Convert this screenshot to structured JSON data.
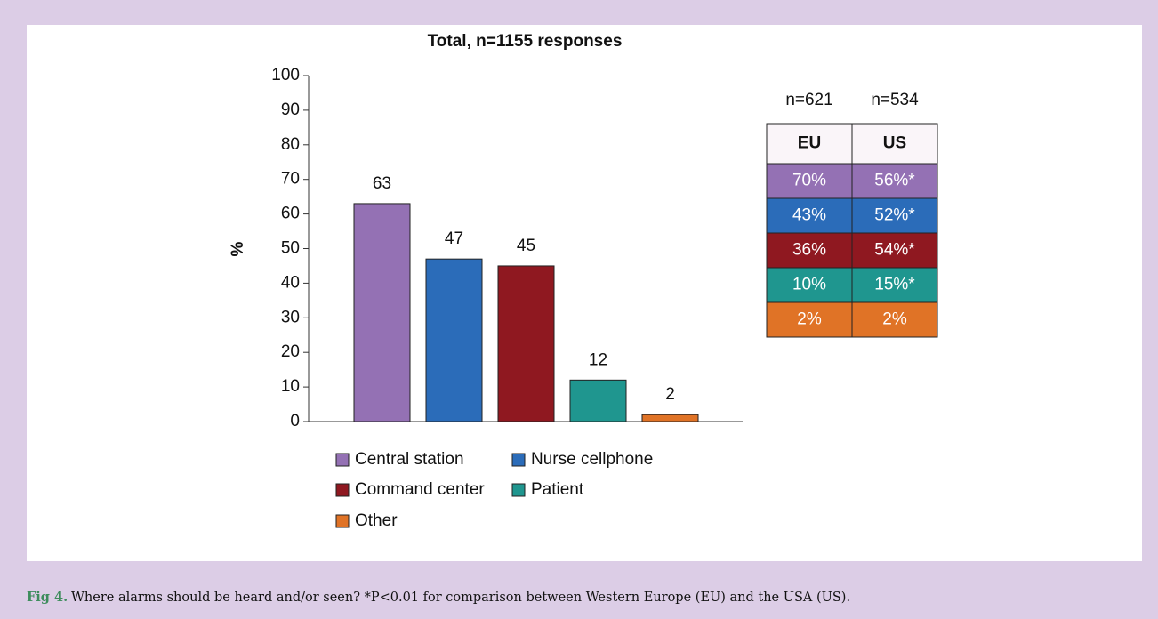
{
  "chart_data": {
    "type": "bar",
    "title": "Total, n=1155 responses",
    "y_label": "%",
    "categories": [
      "Central station",
      "Nurse cellphone",
      "Command center",
      "Patient",
      "Other"
    ],
    "values": [
      63,
      47,
      45,
      12,
      2
    ],
    "colors": [
      "#9471b4",
      "#2b6cb9",
      "#8f1820",
      "#1f968f",
      "#e07326"
    ],
    "ylim": [
      0,
      100
    ],
    "yticks": [
      0,
      10,
      20,
      30,
      40,
      50,
      60,
      70,
      80,
      90,
      100
    ],
    "grid": false
  },
  "table": {
    "group_sizes": [
      "n=621",
      "n=534"
    ],
    "columns": [
      "EU",
      "US"
    ],
    "rows": [
      [
        "70%",
        "56%*"
      ],
      [
        "43%",
        "52%*"
      ],
      [
        "36%",
        "54%*"
      ],
      [
        "10%",
        "15%*"
      ],
      [
        "2%",
        "2%"
      ]
    ]
  },
  "caption": {
    "label": "Fig 4.",
    "text": "Where alarms should be heard and/or seen? *P<0.01 for comparison between Western Europe (EU) and the USA (US)."
  }
}
